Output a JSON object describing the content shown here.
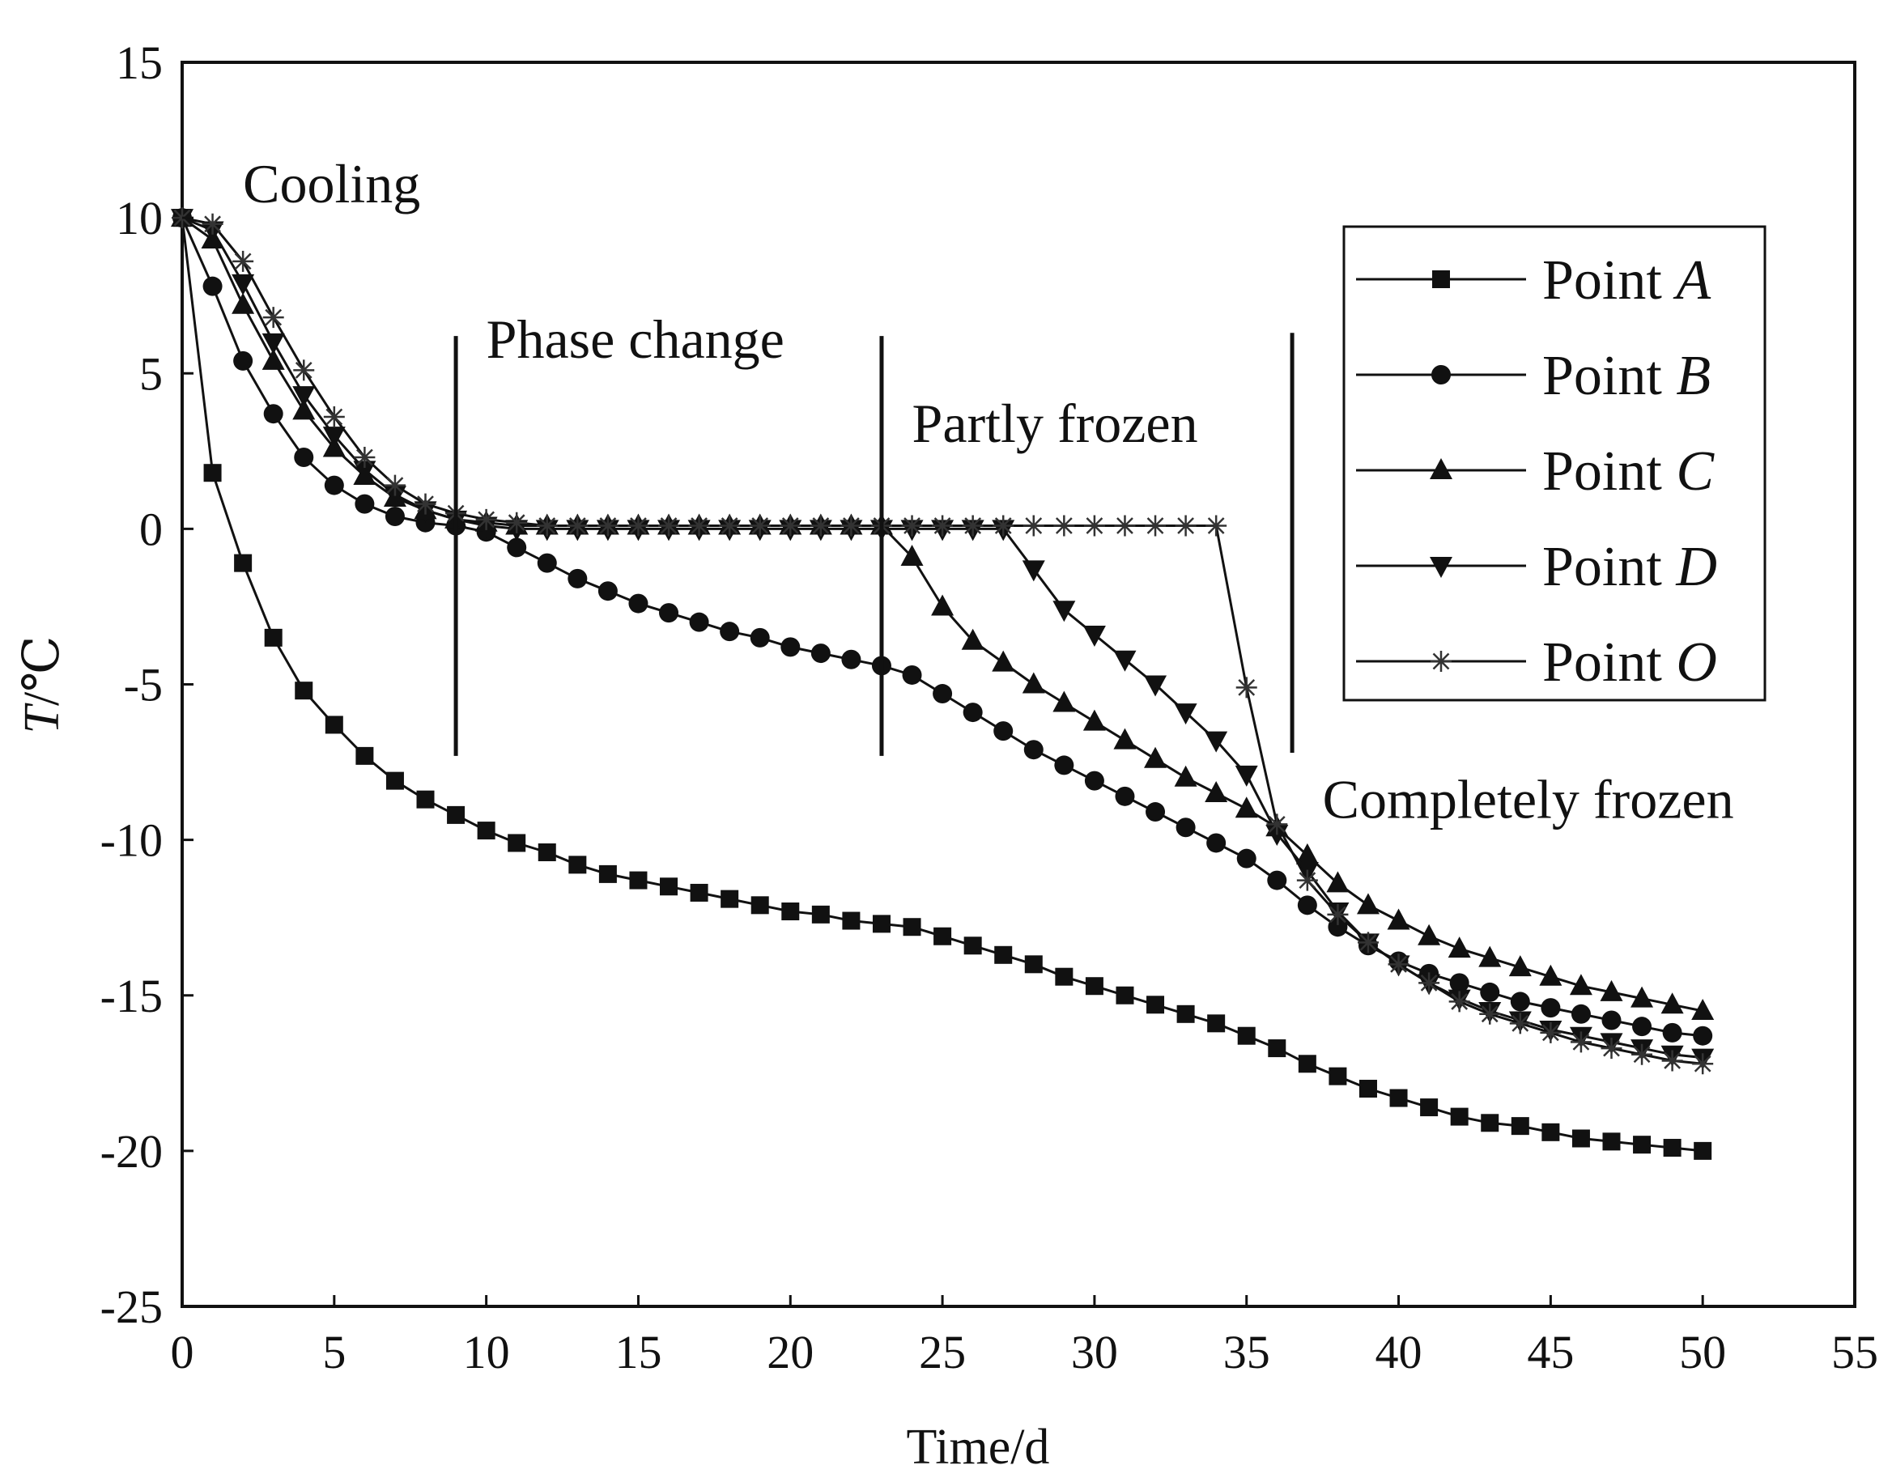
{
  "chart_data": {
    "type": "line",
    "title": "",
    "xlabel": "Time/d",
    "ylabel_italic": "T",
    "ylabel_rest": "/℃",
    "xlim": [
      0,
      55
    ],
    "ylim": [
      -25,
      15
    ],
    "xticks": [
      0,
      5,
      10,
      15,
      20,
      25,
      30,
      35,
      40,
      45,
      50,
      55
    ],
    "yticks": [
      15,
      10,
      5,
      0,
      -5,
      -10,
      -15,
      -20,
      -25
    ],
    "xtick_labels": [
      "0",
      "5",
      "10",
      "15",
      "20",
      "25",
      "30",
      "35",
      "40",
      "45",
      "50",
      "55"
    ],
    "ytick_labels": [
      "15",
      "10",
      "5",
      "0",
      "-5",
      "-10",
      "-15",
      "-20",
      "-25"
    ],
    "grid": false,
    "legend_position": "top-right",
    "phase_dividers_x": [
      9,
      23,
      36.5
    ],
    "annotations": [
      {
        "text": "Cooling",
        "x": 2,
        "y": 10.5
      },
      {
        "text": "Phase change",
        "x": 10,
        "y": 5.5
      },
      {
        "text": "Partly frozen",
        "x": 24,
        "y": 2.8
      },
      {
        "text": "Completely frozen",
        "x": 37.5,
        "y": -9.3
      }
    ],
    "series": [
      {
        "name": "Point A",
        "legend_prefix": "Point ",
        "legend_italic": "A",
        "marker": "square",
        "x": [
          0,
          1,
          2,
          3,
          4,
          5,
          6,
          7,
          8,
          9,
          10,
          11,
          12,
          13,
          14,
          15,
          16,
          17,
          18,
          19,
          20,
          21,
          22,
          23,
          24,
          25,
          26,
          27,
          28,
          29,
          30,
          31,
          32,
          33,
          34,
          35,
          36,
          37,
          38,
          39,
          40,
          41,
          42,
          43,
          44,
          45,
          46,
          47,
          48,
          49,
          50
        ],
        "y": [
          10,
          1.8,
          -1.1,
          -3.5,
          -5.2,
          -6.3,
          -7.3,
          -8.1,
          -8.7,
          -9.2,
          -9.7,
          -10.1,
          -10.4,
          -10.8,
          -11.1,
          -11.3,
          -11.5,
          -11.7,
          -11.9,
          -12.1,
          -12.3,
          -12.4,
          -12.6,
          -12.7,
          -12.8,
          -13.1,
          -13.4,
          -13.7,
          -14.0,
          -14.4,
          -14.7,
          -15.0,
          -15.3,
          -15.6,
          -15.9,
          -16.3,
          -16.7,
          -17.2,
          -17.6,
          -18.0,
          -18.3,
          -18.6,
          -18.9,
          -19.1,
          -19.2,
          -19.4,
          -19.6,
          -19.7,
          -19.8,
          -19.9,
          -20.0
        ]
      },
      {
        "name": "Point B",
        "legend_prefix": "Point ",
        "legend_italic": "B",
        "marker": "circle",
        "x": [
          0,
          1,
          2,
          3,
          4,
          5,
          6,
          7,
          8,
          9,
          10,
          11,
          12,
          13,
          14,
          15,
          16,
          17,
          18,
          19,
          20,
          21,
          22,
          23,
          24,
          25,
          26,
          27,
          28,
          29,
          30,
          31,
          32,
          33,
          34,
          35,
          36,
          37,
          38,
          39,
          40,
          41,
          42,
          43,
          44,
          45,
          46,
          47,
          48,
          49,
          50
        ],
        "y": [
          10,
          7.8,
          5.4,
          3.7,
          2.3,
          1.4,
          0.8,
          0.4,
          0.2,
          0.1,
          -0.1,
          -0.6,
          -1.1,
          -1.6,
          -2.0,
          -2.4,
          -2.7,
          -3.0,
          -3.3,
          -3.5,
          -3.8,
          -4.0,
          -4.2,
          -4.4,
          -4.7,
          -5.3,
          -5.9,
          -6.5,
          -7.1,
          -7.6,
          -8.1,
          -8.6,
          -9.1,
          -9.6,
          -10.1,
          -10.6,
          -11.3,
          -12.1,
          -12.8,
          -13.4,
          -13.9,
          -14.3,
          -14.6,
          -14.9,
          -15.2,
          -15.4,
          -15.6,
          -15.8,
          -16.0,
          -16.2,
          -16.3
        ]
      },
      {
        "name": "Point C",
        "legend_prefix": "Point ",
        "legend_italic": "C",
        "marker": "triangle-up",
        "x": [
          0,
          1,
          2,
          3,
          4,
          5,
          6,
          7,
          8,
          9,
          10,
          11,
          12,
          13,
          14,
          15,
          16,
          17,
          18,
          19,
          20,
          21,
          22,
          23,
          24,
          25,
          26,
          27,
          28,
          29,
          30,
          31,
          32,
          33,
          34,
          35,
          36,
          37,
          38,
          39,
          40,
          41,
          42,
          43,
          44,
          45,
          46,
          47,
          48,
          49,
          50
        ],
        "y": [
          10,
          9.3,
          7.2,
          5.4,
          3.8,
          2.6,
          1.7,
          1.0,
          0.6,
          0.3,
          0.2,
          0.1,
          0.1,
          0.1,
          0.1,
          0.1,
          0.1,
          0.1,
          0.1,
          0.1,
          0.1,
          0.1,
          0.1,
          0.1,
          -0.9,
          -2.5,
          -3.6,
          -4.3,
          -5.0,
          -5.6,
          -6.2,
          -6.8,
          -7.4,
          -8.0,
          -8.5,
          -9.0,
          -9.6,
          -10.5,
          -11.4,
          -12.1,
          -12.6,
          -13.1,
          -13.5,
          -13.8,
          -14.1,
          -14.4,
          -14.7,
          -14.9,
          -15.1,
          -15.3,
          -15.5
        ]
      },
      {
        "name": "Point D",
        "legend_prefix": "Point ",
        "legend_italic": "D",
        "marker": "triangle-down",
        "x": [
          0,
          1,
          2,
          3,
          4,
          5,
          6,
          7,
          8,
          9,
          10,
          11,
          12,
          13,
          14,
          15,
          16,
          17,
          18,
          19,
          20,
          21,
          22,
          23,
          24,
          25,
          26,
          27,
          28,
          29,
          30,
          31,
          32,
          33,
          34,
          35,
          36,
          37,
          38,
          39,
          40,
          41,
          42,
          43,
          44,
          45,
          46,
          47,
          48,
          49,
          50
        ],
        "y": [
          10,
          9.6,
          7.9,
          6.0,
          4.3,
          3.0,
          1.9,
          1.1,
          0.6,
          0.3,
          0.1,
          0,
          0,
          0,
          0,
          0,
          0,
          0,
          0,
          0,
          0,
          0,
          0,
          0,
          0,
          0,
          0,
          0,
          -1.3,
          -2.6,
          -3.4,
          -4.2,
          -5.0,
          -5.9,
          -6.8,
          -7.9,
          -9.8,
          -11.0,
          -12.3,
          -13.3,
          -14.0,
          -14.6,
          -15.1,
          -15.5,
          -15.8,
          -16.1,
          -16.3,
          -16.5,
          -16.7,
          -16.9,
          -17.0
        ]
      },
      {
        "name": "Point O",
        "legend_prefix": "Point ",
        "legend_italic": "O",
        "marker": "star",
        "x": [
          0,
          1,
          2,
          3,
          4,
          5,
          6,
          7,
          8,
          9,
          10,
          11,
          12,
          13,
          14,
          15,
          16,
          17,
          18,
          19,
          20,
          21,
          22,
          23,
          24,
          25,
          26,
          27,
          28,
          29,
          30,
          31,
          32,
          33,
          34,
          35,
          36,
          37,
          38,
          39,
          40,
          41,
          42,
          43,
          44,
          45,
          46,
          47,
          48,
          49,
          50
        ],
        "y": [
          10,
          9.8,
          8.6,
          6.8,
          5.1,
          3.6,
          2.3,
          1.4,
          0.8,
          0.5,
          0.3,
          0.2,
          0.1,
          0.1,
          0.1,
          0.1,
          0.1,
          0.1,
          0.1,
          0.1,
          0.1,
          0.1,
          0.1,
          0.1,
          0.1,
          0.1,
          0.1,
          0.1,
          0.1,
          0.1,
          0.1,
          0.1,
          0.1,
          0.1,
          0.1,
          -5.1,
          -9.5,
          -11.3,
          -12.4,
          -13.3,
          -14.0,
          -14.6,
          -15.2,
          -15.6,
          -15.9,
          -16.2,
          -16.5,
          -16.7,
          -16.9,
          -17.1,
          -17.2
        ]
      }
    ]
  },
  "colors": {
    "line": "#111111",
    "marker": "#111111",
    "star_marker": "#333333",
    "background": "#ffffff"
  }
}
